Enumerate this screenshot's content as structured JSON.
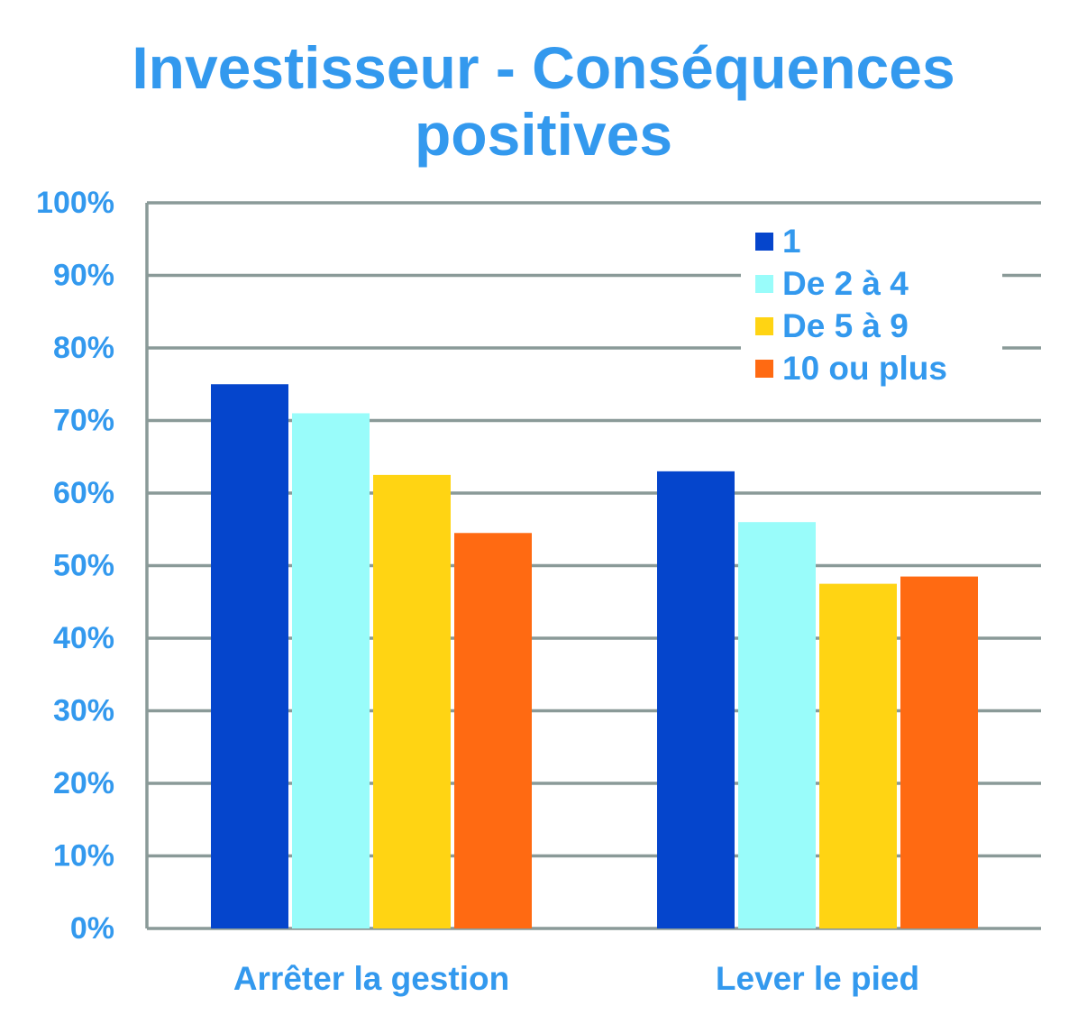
{
  "title_lines": [
    "Investisseur - Conséquences",
    "positives"
  ],
  "colors": {
    "text": "#3399ee",
    "grid": "#8a9a98",
    "series": [
      "#0545cc",
      "#99fcfa",
      "#ffd413",
      "#ff6a12"
    ]
  },
  "chart_data": {
    "type": "bar",
    "title": "Investisseur - Conséquences positives",
    "xlabel": "",
    "ylabel": "",
    "categories": [
      "Arrêter la gestion",
      "Lever le pied"
    ],
    "series": [
      {
        "name": "1",
        "values": [
          75,
          63
        ]
      },
      {
        "name": "De 2 à 4",
        "values": [
          71,
          56
        ]
      },
      {
        "name": "De 5 à 9",
        "values": [
          62.5,
          47.5
        ]
      },
      {
        "name": "10 ou plus",
        "values": [
          54.5,
          48.5
        ]
      }
    ],
    "ylim": [
      0,
      100
    ],
    "yticks": [
      0,
      10,
      20,
      30,
      40,
      50,
      60,
      70,
      80,
      90,
      100
    ],
    "ytick_labels": [
      "0%",
      "10%",
      "20%",
      "30%",
      "40%",
      "50%",
      "60%",
      "70%",
      "80%",
      "90%",
      "100%"
    ],
    "grid": true,
    "legend_position": "top-right"
  }
}
